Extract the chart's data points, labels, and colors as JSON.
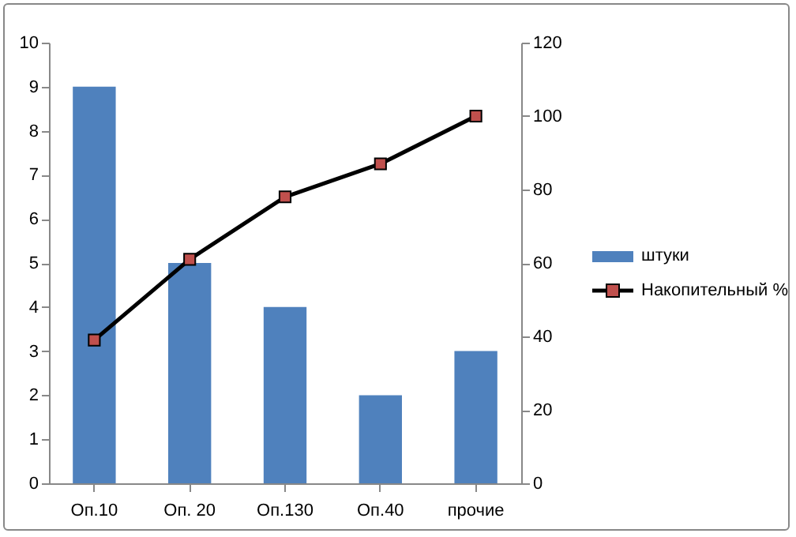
{
  "chart_data": {
    "type": "bar",
    "categories": [
      "Оп.10",
      "Оп. 20",
      "Оп.130",
      "Оп.40",
      "прочие"
    ],
    "series": [
      {
        "name": "штуки",
        "color": "#4f81bd",
        "values": [
          9,
          5,
          4,
          2,
          3
        ]
      },
      {
        "name": "Накопительный %",
        "type": "line",
        "axis": "y2",
        "color": "#c0504d",
        "values": [
          39,
          61,
          78,
          87,
          100
        ]
      }
    ],
    "ylim": [
      0,
      10
    ],
    "yticks": [
      0,
      1,
      2,
      3,
      4,
      5,
      6,
      7,
      8,
      9,
      10
    ],
    "y2lim": [
      0,
      120
    ],
    "y2ticks": [
      0,
      20,
      40,
      60,
      80,
      100,
      120
    ],
    "grid": false,
    "legend": "right",
    "marker": "square",
    "line_style": "solid"
  }
}
